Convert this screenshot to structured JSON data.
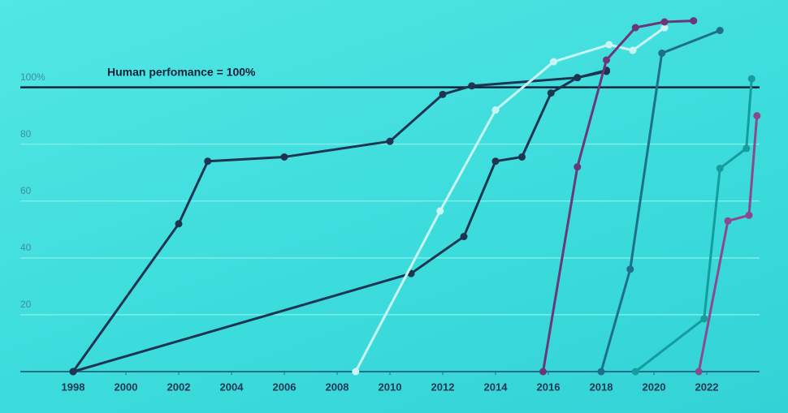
{
  "chart_data": {
    "type": "line",
    "annotation": "Human perfomance = 100%",
    "reference_line": 100,
    "xlim": [
      1996,
      2024
    ],
    "xticks": [
      1998,
      2000,
      2002,
      2004,
      2006,
      2008,
      2010,
      2012,
      2014,
      2016,
      2018,
      2020,
      2022
    ],
    "ylim": [
      0,
      125
    ],
    "yticks": [
      20,
      40,
      60,
      80,
      {
        "value": 100,
        "label": "100%"
      }
    ],
    "grid": true,
    "series": [
      {
        "color": "#1d3550",
        "x": [
          1998,
          2002.0,
          2003.1,
          2006.0,
          2010.0,
          2012.0,
          2013.1,
          2017.1,
          2018.2
        ],
        "values": [
          0,
          52,
          74,
          75.5,
          81,
          97.5,
          100.5,
          103.4,
          106
        ]
      },
      {
        "color": "#1d3550",
        "x": [
          1998,
          2010.8,
          2012.8,
          2014.0,
          2015.0,
          2016.1,
          2017.1,
          2018.2
        ],
        "values": [
          0,
          34.5,
          47.5,
          74,
          75.5,
          98,
          103.4,
          105.6
        ]
      },
      {
        "color": "#c9f6f4",
        "x": [
          2008.7,
          2011.9,
          2014.0,
          2016.2,
          2018.3,
          2019.2,
          2020.4
        ],
        "values": [
          0,
          56.5,
          92,
          109,
          115,
          113,
          121
        ]
      },
      {
        "color": "#6a3877",
        "x": [
          2015.8,
          2017.1,
          2018.2,
          2019.3,
          2020.4,
          2021.5
        ],
        "values": [
          0,
          72,
          109.6,
          121,
          123,
          123.4
        ]
      },
      {
        "color": "#1f6f86",
        "x": [
          2018.0,
          2019.1,
          2020.3,
          2022.5
        ],
        "values": [
          0,
          36,
          112,
          120
        ]
      },
      {
        "color": "#159c9c",
        "x": [
          2019.3,
          2021.9,
          2022.5,
          2023.5,
          2023.7
        ],
        "values": [
          0,
          18.6,
          71.5,
          78.5,
          103
        ]
      },
      {
        "color": "#8a4a8c",
        "x": [
          2021.7,
          2022.8,
          2023.6,
          2023.9
        ],
        "values": [
          0,
          53,
          55,
          90
        ]
      }
    ]
  }
}
